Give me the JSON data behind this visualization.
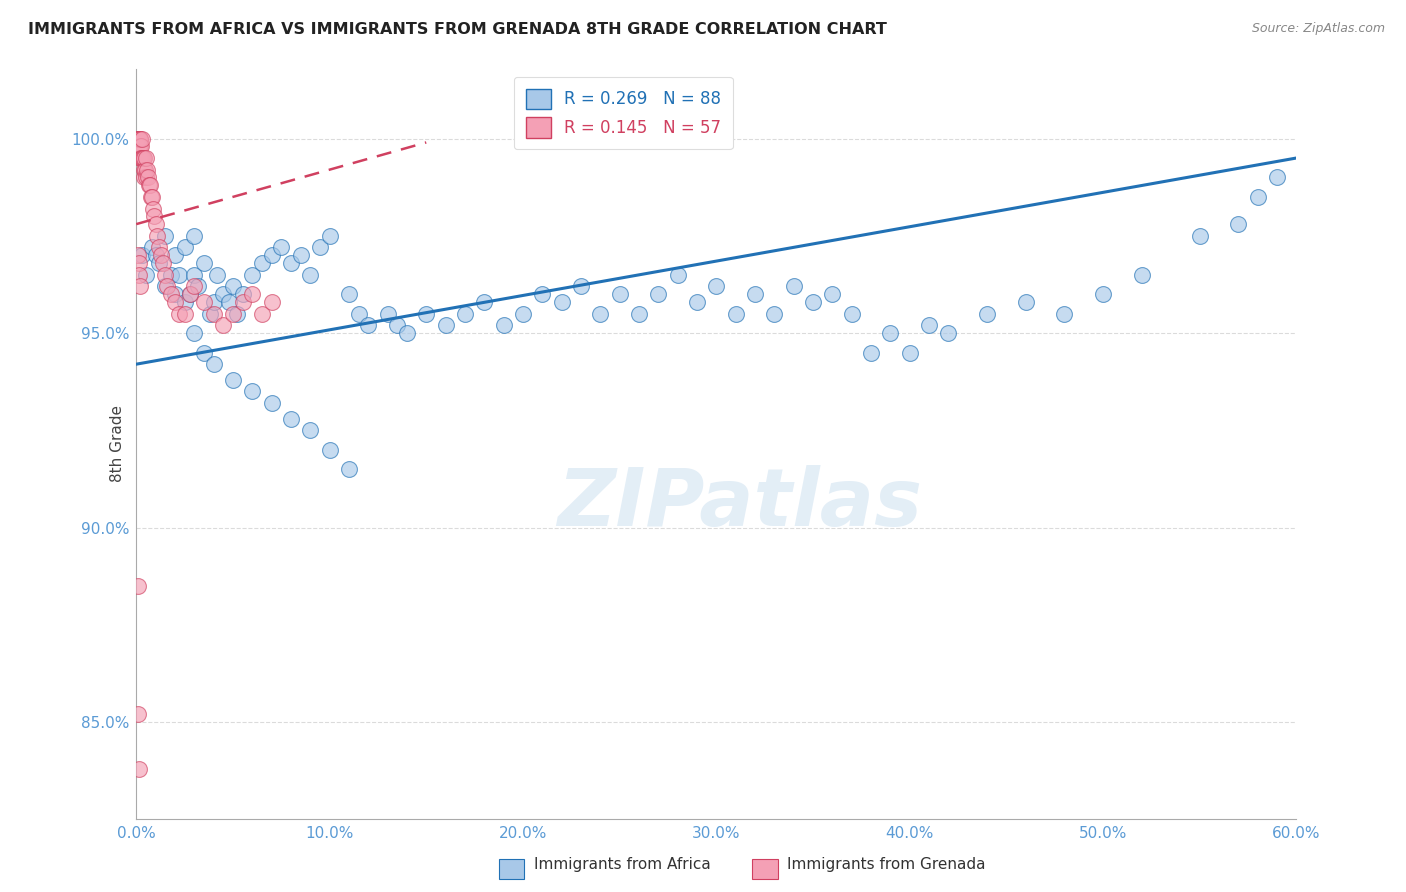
{
  "title": "IMMIGRANTS FROM AFRICA VS IMMIGRANTS FROM GRENADA 8TH GRADE CORRELATION CHART",
  "source": "Source: ZipAtlas.com",
  "ylabel_left": "8th Grade",
  "xlim": [
    0.0,
    60.0
  ],
  "ylim": [
    82.5,
    101.8
  ],
  "yticks": [
    85.0,
    90.0,
    95.0,
    100.0
  ],
  "xticks": [
    0.0,
    10.0,
    20.0,
    30.0,
    40.0,
    50.0,
    60.0
  ],
  "legend_r_africa": "0.269",
  "legend_n_africa": "88",
  "legend_r_grenada": "0.145",
  "legend_n_grenada": "57",
  "legend_label_africa": "Immigrants from Africa",
  "legend_label_grenada": "Immigrants from Grenada",
  "watermark": "ZIPatlas",
  "blue_color": "#a8c8e8",
  "pink_color": "#f4a0b5",
  "trendline_blue": "#2171b5",
  "trendline_pink": "#d04060",
  "axis_color": "#5b9bd5",
  "trendline_blue_x0": 0.0,
  "trendline_blue_y0": 94.2,
  "trendline_blue_x1": 60.0,
  "trendline_blue_y1": 99.5,
  "trendline_pink_x0": 0.0,
  "trendline_pink_y0": 97.8,
  "trendline_pink_x1": 10.0,
  "trendline_pink_y1": 99.2,
  "africa_x": [
    0.3,
    0.5,
    0.8,
    1.0,
    1.2,
    1.5,
    1.5,
    1.8,
    2.0,
    2.0,
    2.2,
    2.5,
    2.5,
    2.8,
    3.0,
    3.0,
    3.2,
    3.5,
    3.8,
    4.0,
    4.2,
    4.5,
    4.8,
    5.0,
    5.2,
    5.5,
    6.0,
    6.5,
    7.0,
    7.5,
    8.0,
    8.5,
    9.0,
    9.5,
    10.0,
    11.0,
    11.5,
    12.0,
    13.0,
    13.5,
    14.0,
    15.0,
    16.0,
    17.0,
    18.0,
    19.0,
    20.0,
    21.0,
    22.0,
    23.0,
    24.0,
    25.0,
    26.0,
    27.0,
    28.0,
    29.0,
    30.0,
    31.0,
    32.0,
    33.0,
    34.0,
    35.0,
    36.0,
    37.0,
    38.0,
    39.0,
    40.0,
    41.0,
    42.0,
    44.0,
    46.0,
    48.0,
    50.0,
    52.0,
    55.0,
    57.0,
    58.0,
    59.0,
    3.0,
    3.5,
    4.0,
    5.0,
    6.0,
    7.0,
    8.0,
    9.0,
    10.0,
    11.0
  ],
  "africa_y": [
    97.0,
    96.5,
    97.2,
    97.0,
    96.8,
    97.5,
    96.2,
    96.5,
    97.0,
    96.0,
    96.5,
    97.2,
    95.8,
    96.0,
    97.5,
    96.5,
    96.2,
    96.8,
    95.5,
    95.8,
    96.5,
    96.0,
    95.8,
    96.2,
    95.5,
    96.0,
    96.5,
    96.8,
    97.0,
    97.2,
    96.8,
    97.0,
    96.5,
    97.2,
    97.5,
    96.0,
    95.5,
    95.2,
    95.5,
    95.2,
    95.0,
    95.5,
    95.2,
    95.5,
    95.8,
    95.2,
    95.5,
    96.0,
    95.8,
    96.2,
    95.5,
    96.0,
    95.5,
    96.0,
    96.5,
    95.8,
    96.2,
    95.5,
    96.0,
    95.5,
    96.2,
    95.8,
    96.0,
    95.5,
    94.5,
    95.0,
    94.5,
    95.2,
    95.0,
    95.5,
    95.8,
    95.5,
    96.0,
    96.5,
    97.5,
    97.8,
    98.5,
    99.0,
    95.0,
    94.5,
    94.2,
    93.8,
    93.5,
    93.2,
    92.8,
    92.5,
    92.0,
    91.5
  ],
  "grenada_x": [
    0.05,
    0.08,
    0.1,
    0.12,
    0.15,
    0.15,
    0.18,
    0.2,
    0.2,
    0.22,
    0.25,
    0.25,
    0.3,
    0.3,
    0.35,
    0.38,
    0.4,
    0.4,
    0.45,
    0.5,
    0.5,
    0.55,
    0.6,
    0.65,
    0.7,
    0.75,
    0.8,
    0.85,
    0.9,
    1.0,
    1.1,
    1.2,
    1.3,
    1.4,
    1.5,
    1.6,
    1.8,
    2.0,
    2.2,
    2.5,
    2.8,
    3.0,
    3.5,
    4.0,
    4.5,
    5.0,
    5.5,
    6.0,
    6.5,
    7.0,
    0.1,
    0.12,
    0.15,
    0.2,
    0.08,
    0.1,
    0.15
  ],
  "grenada_y": [
    100.0,
    100.0,
    100.0,
    100.0,
    100.0,
    99.8,
    100.0,
    99.8,
    100.0,
    99.5,
    99.8,
    99.5,
    99.5,
    100.0,
    99.5,
    99.2,
    99.5,
    99.0,
    99.2,
    99.0,
    99.5,
    99.2,
    99.0,
    98.8,
    98.8,
    98.5,
    98.5,
    98.2,
    98.0,
    97.8,
    97.5,
    97.2,
    97.0,
    96.8,
    96.5,
    96.2,
    96.0,
    95.8,
    95.5,
    95.5,
    96.0,
    96.2,
    95.8,
    95.5,
    95.2,
    95.5,
    95.8,
    96.0,
    95.5,
    95.8,
    97.0,
    96.8,
    96.5,
    96.2,
    88.5,
    85.2,
    83.8
  ]
}
